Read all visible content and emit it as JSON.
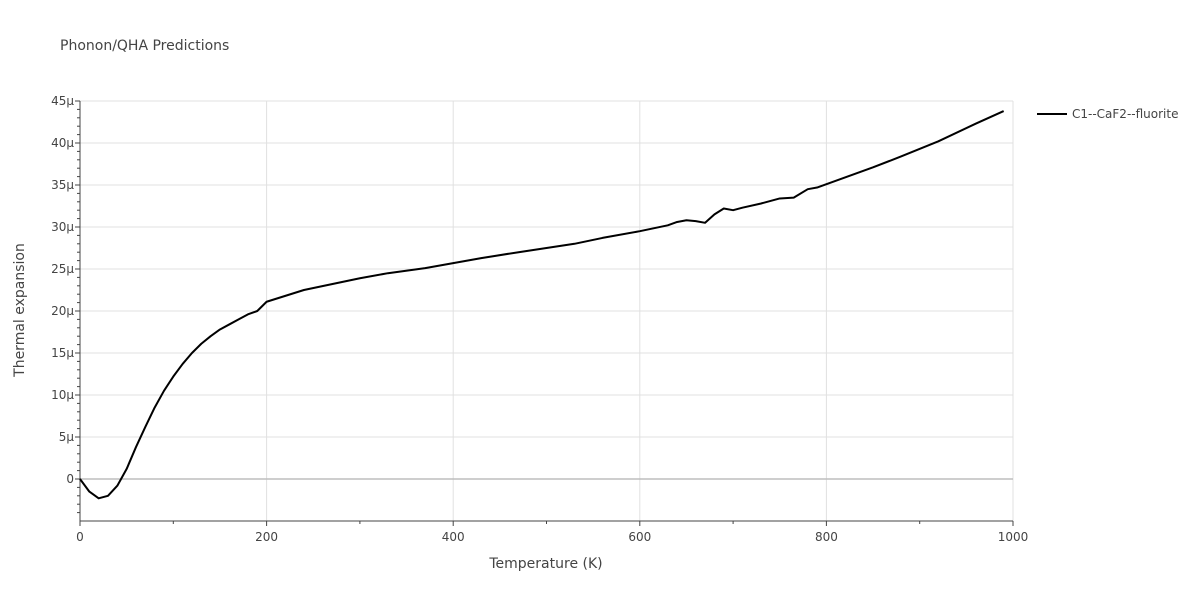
{
  "chart_data": {
    "type": "line",
    "title": "Phonon/QHA Predictions",
    "xlabel": "Temperature (K)",
    "ylabel": "Thermal expansion",
    "xlim": [
      0,
      1000
    ],
    "ylim": [
      -5e-06,
      4.5e-05
    ],
    "x_ticks": [
      0,
      200,
      400,
      600,
      800,
      1000
    ],
    "x_tick_labels": [
      "0",
      "200",
      "400",
      "600",
      "800",
      "1000"
    ],
    "y_ticks": [
      0,
      5e-06,
      1e-05,
      1.5e-05,
      2e-05,
      2.5e-05,
      3e-05,
      3.5e-05,
      4e-05,
      4.5e-05
    ],
    "y_tick_labels": [
      "0",
      "5μ",
      "10μ",
      "15μ",
      "20μ",
      "25μ",
      "30μ",
      "35μ",
      "40μ",
      "45μ"
    ],
    "grid": true,
    "legend_position": "top-right",
    "series": [
      {
        "name": "C1--CaF2--fluorite",
        "color": "#000000",
        "x": [
          0,
          10,
          20,
          30,
          40,
          50,
          60,
          70,
          80,
          90,
          100,
          110,
          120,
          130,
          140,
          150,
          160,
          170,
          180,
          190,
          200,
          220,
          240,
          270,
          300,
          330,
          370,
          400,
          430,
          470,
          500,
          530,
          560,
          600,
          630,
          640,
          650,
          660,
          670,
          680,
          690,
          700,
          710,
          730,
          750,
          765,
          780,
          790,
          800,
          820,
          850,
          880,
          920,
          960,
          990
        ],
        "y": [
          0,
          -1.5e-06,
          -2.3e-06,
          -2e-06,
          -8e-07,
          1.2e-06,
          3.8e-06,
          6.2e-06,
          8.5e-06,
          1.05e-05,
          1.22e-05,
          1.37e-05,
          1.5e-05,
          1.61e-05,
          1.7e-05,
          1.78e-05,
          1.84e-05,
          1.9e-05,
          1.96e-05,
          2e-05,
          2.11e-05,
          2.18e-05,
          2.25e-05,
          2.32e-05,
          2.39e-05,
          2.45e-05,
          2.51e-05,
          2.57e-05,
          2.63e-05,
          2.7e-05,
          2.75e-05,
          2.8e-05,
          2.87e-05,
          2.95e-05,
          3.02e-05,
          3.06e-05,
          3.08e-05,
          3.07e-05,
          3.05e-05,
          3.15e-05,
          3.22e-05,
          3.2e-05,
          3.23e-05,
          3.28e-05,
          3.34e-05,
          3.35e-05,
          3.45e-05,
          3.47e-05,
          3.51e-05,
          3.59e-05,
          3.71e-05,
          3.84e-05,
          4.02e-05,
          4.23e-05,
          4.38e-05
        ]
      }
    ]
  }
}
